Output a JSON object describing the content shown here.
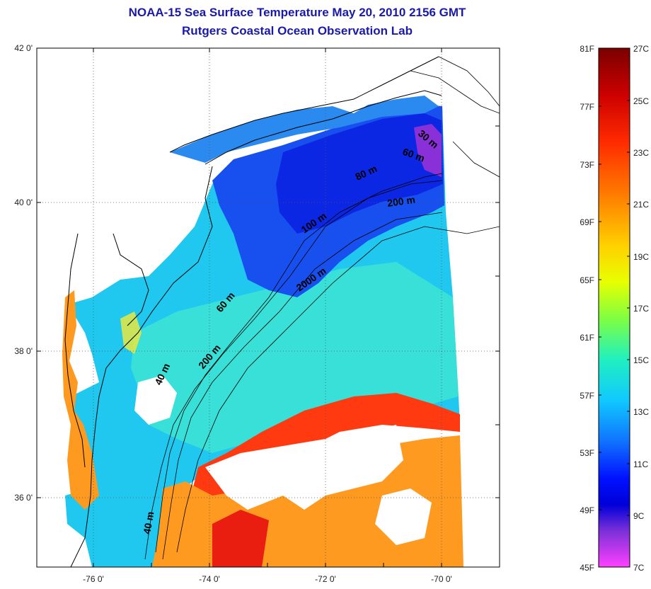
{
  "title": "NOAA-15 Sea Surface Temperature May 20, 2010 2156 GMT",
  "subtitle": "Rutgers Coastal Ocean Observation Lab",
  "map": {
    "lat_labels": [
      "42 0'",
      "40 0'",
      "38 0'",
      "36 0'"
    ],
    "lon_labels": [
      "-76 0'",
      "-74 0'",
      "-72 0'",
      "-70 0'"
    ],
    "grid": "dotted",
    "contour_labels": [
      "30 m",
      "60 m",
      "80 m",
      "200 m",
      "100 m",
      "2000 m",
      "60 m",
      "200 m",
      "40 m",
      "40 m"
    ]
  },
  "colorbar": {
    "f_labels": [
      "81F",
      "77F",
      "73F",
      "69F",
      "65F",
      "61F",
      "57F",
      "53F",
      "49F",
      "45F"
    ],
    "c_labels": [
      "27C",
      "25C",
      "23C",
      "21C",
      "19C",
      "17C",
      "15C",
      "13C",
      "11C",
      "9C",
      "7C"
    ],
    "colors": [
      "#7a0000",
      "#cc0000",
      "#ff2a00",
      "#ff7a00",
      "#ffd000",
      "#e8ff00",
      "#80ff40",
      "#20f0c0",
      "#10c8ff",
      "#1070ff",
      "#0010ff",
      "#0000d8",
      "#7a30d8",
      "#ff40ff"
    ]
  },
  "colors": {
    "title": "#1a1aa8",
    "land": "#ffffff",
    "cold_water": "#1840e8",
    "shelf_water": "#20c8f0",
    "gulf_stream": "#ff3a10",
    "warm_water": "#ff9a20"
  }
}
